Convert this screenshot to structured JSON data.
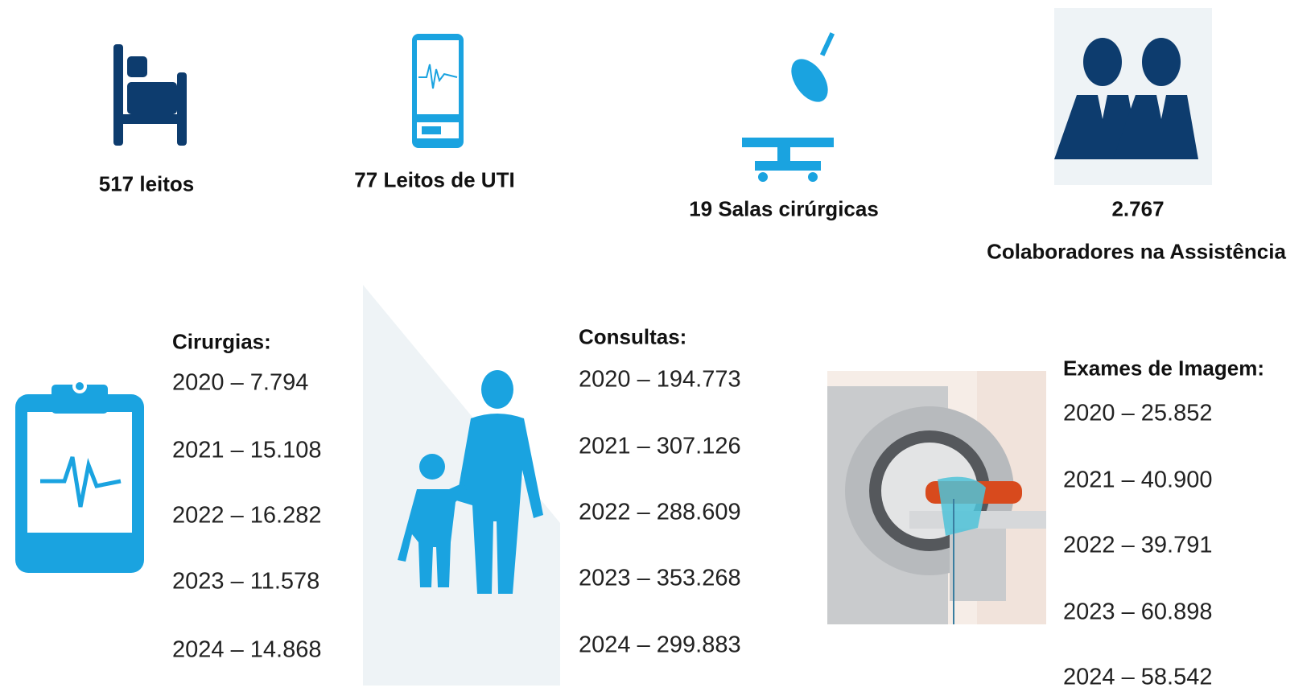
{
  "stats": [
    {
      "label": "517 leitos"
    },
    {
      "label": "77 Leitos de UTI"
    },
    {
      "label": "19 Salas cirúrgicas"
    },
    {
      "value": "2.767",
      "label": "Colaboradores na Assistência"
    }
  ],
  "lists": [
    {
      "title": "Cirurgias:",
      "rows": [
        "2020 – 7.794",
        "2021 – 15.108",
        "2022 – 16.282",
        "2023 – 11.578",
        "2024 – 14.868"
      ]
    },
    {
      "title": "Consultas:",
      "rows": [
        "2020 – 194.773",
        "2021 – 307.126",
        "2022 – 288.609",
        "2023 – 353.268",
        "2024 – 299.883"
      ]
    },
    {
      "title": "Exames de Imagem:",
      "rows": [
        "2020 – 25.852",
        "2021 – 40.900",
        "2022 – 39.791",
        "2023 – 60.898",
        "2024 – 58.542"
      ]
    }
  ]
}
